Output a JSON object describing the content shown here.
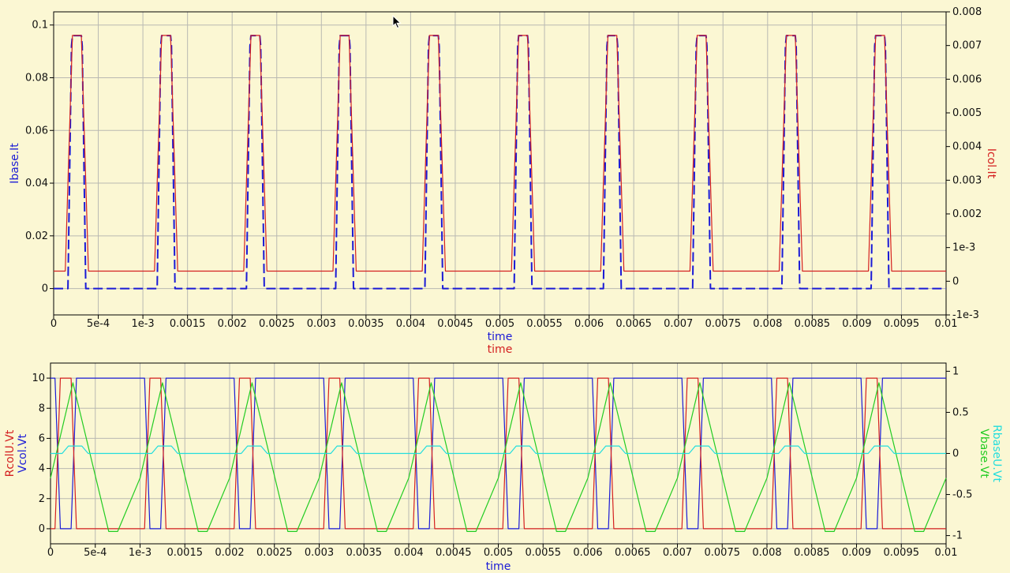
{
  "chart_data": [
    {
      "type": "line",
      "xlabel": [
        "time",
        "time"
      ],
      "xlabel_colors": [
        "#1a1ad6",
        "#d42020"
      ],
      "x_ticks": [
        "0",
        "5e-4",
        "1e-3",
        "0.0015",
        "0.002",
        "0.0025",
        "0.003",
        "0.0035",
        "0.004",
        "0.0045",
        "0.005",
        "0.0055",
        "0.006",
        "0.0065",
        "0.007",
        "0.0075",
        "0.008",
        "0.0085",
        "0.009",
        "0.0095",
        "0.01"
      ],
      "xlim": [
        0,
        0.01
      ],
      "left_axis": {
        "label": "Ibase.It",
        "color": "#1a1ad6",
        "ylim": [
          -0.01,
          0.105
        ],
        "ticks": [
          {
            "v": 0,
            "t": "0"
          },
          {
            "v": 0.02,
            "t": "0.02"
          },
          {
            "v": 0.04,
            "t": "0.04"
          },
          {
            "v": 0.06,
            "t": "0.06"
          },
          {
            "v": 0.08,
            "t": "0.08"
          },
          {
            "v": 0.1,
            "t": "0.1"
          }
        ]
      },
      "right_axis": {
        "label": "Icol.It",
        "color": "#d42020",
        "ylim": [
          -0.001,
          0.008
        ],
        "ticks": [
          {
            "v": -0.001,
            "t": "-1e-3"
          },
          {
            "v": 0,
            "t": "0"
          },
          {
            "v": 0.001,
            "t": "1e-3"
          },
          {
            "v": 0.002,
            "t": "0.002"
          },
          {
            "v": 0.003,
            "t": "0.003"
          },
          {
            "v": 0.004,
            "t": "0.004"
          },
          {
            "v": 0.005,
            "t": "0.005"
          },
          {
            "v": 0.006,
            "t": "0.006"
          },
          {
            "v": 0.007,
            "t": "0.007"
          },
          {
            "v": 0.008,
            "t": "0.008"
          }
        ]
      },
      "period": 0.001,
      "pulse_starts": [
        0.00013,
        0.00113,
        0.00213,
        0.00313,
        0.00413,
        0.00513,
        0.00613,
        0.00713,
        0.00813,
        0.00913
      ],
      "series": [
        {
          "name": "Ibase.It",
          "axis": "left",
          "color": "#1a1ad6",
          "dashed": true,
          "rel_t": [
            0,
            3e-05,
            7e-05,
            8e-05,
            0.00018,
            0.00019,
            0.00023,
            0.00027
          ],
          "values": [
            0,
            0,
            0.092,
            0.096,
            0.096,
            0.092,
            0,
            0
          ]
        },
        {
          "name": "Icol.It",
          "axis": "right",
          "color": "#d42020",
          "dashed": false,
          "rel_t": [
            0,
            8e-05,
            0.00018,
            0.00026
          ],
          "values": [
            0.0003,
            0.0073,
            0.0073,
            0.0003
          ],
          "baseline": 0.0003
        }
      ],
      "grid": true
    },
    {
      "type": "line",
      "xlabel": "time",
      "x_ticks": [
        "0",
        "5e-4",
        "1e-3",
        "0.0015",
        "0.002",
        "0.0025",
        "0.003",
        "0.0035",
        "0.004",
        "0.0045",
        "0.005",
        "0.0055",
        "0.006",
        "0.0065",
        "0.007",
        "0.0075",
        "0.008",
        "0.0085",
        "0.009",
        "0.0095",
        "0.01"
      ],
      "xlim": [
        0,
        0.01
      ],
      "left_axis": {
        "labels": [
          {
            "text": "RcolU.Vt",
            "color": "#d42020"
          },
          {
            "text": "Vcol.Vt",
            "color": "#1a1ad6"
          }
        ],
        "ylim": [
          -1,
          11
        ],
        "ticks": [
          {
            "v": 0,
            "t": "0"
          },
          {
            "v": 2,
            "t": "2"
          },
          {
            "v": 4,
            "t": "4"
          },
          {
            "v": 6,
            "t": "6"
          },
          {
            "v": 8,
            "t": "8"
          },
          {
            "v": 10,
            "t": "10"
          }
        ]
      },
      "right_axis": {
        "labels": [
          {
            "text": "RbaseU.Vt",
            "color": "#22dddd"
          },
          {
            "text": "Vbase.Vt",
            "color": "#22cc22"
          }
        ],
        "ylim": [
          -1.1,
          1.1
        ],
        "ticks": [
          {
            "v": -1,
            "t": "-1"
          },
          {
            "v": -0.5,
            "t": "-0.5"
          },
          {
            "v": 0,
            "t": "0"
          },
          {
            "v": 0.5,
            "t": "0.5"
          },
          {
            "v": 1,
            "t": "1"
          }
        ]
      },
      "period": 0.001,
      "series": [
        {
          "name": "Vcol.Vt",
          "axis": "left",
          "color": "#1a1ad6",
          "rel_t": [
            0,
            5e-05,
            0.00011,
            0.00023,
            0.00029,
            0.001
          ],
          "values": [
            10,
            10,
            0,
            0,
            10,
            10
          ]
        },
        {
          "name": "RcolU.Vt",
          "axis": "left",
          "color": "#d42020",
          "rel_t": [
            0,
            5e-05,
            0.00011,
            0.00023,
            0.00029,
            0.001
          ],
          "values": [
            0,
            0,
            10,
            10,
            0,
            0
          ]
        },
        {
          "name": "Vbase.Vt",
          "axis": "right",
          "color": "#22cc22",
          "rel_t": [
            0,
            0.00025,
            0.00065,
            0.00075,
            0.001
          ],
          "values": [
            -0.3,
            0.86,
            -0.95,
            -0.95,
            -0.3
          ]
        },
        {
          "name": "RbaseU.Vt",
          "axis": "right",
          "color": "#22dddd",
          "rel_t": [
            0,
            0.00013,
            0.0002,
            0.00035,
            0.00042,
            0.001
          ],
          "values": [
            0,
            0,
            0.09,
            0.09,
            0,
            0
          ]
        }
      ],
      "grid": true
    }
  ]
}
